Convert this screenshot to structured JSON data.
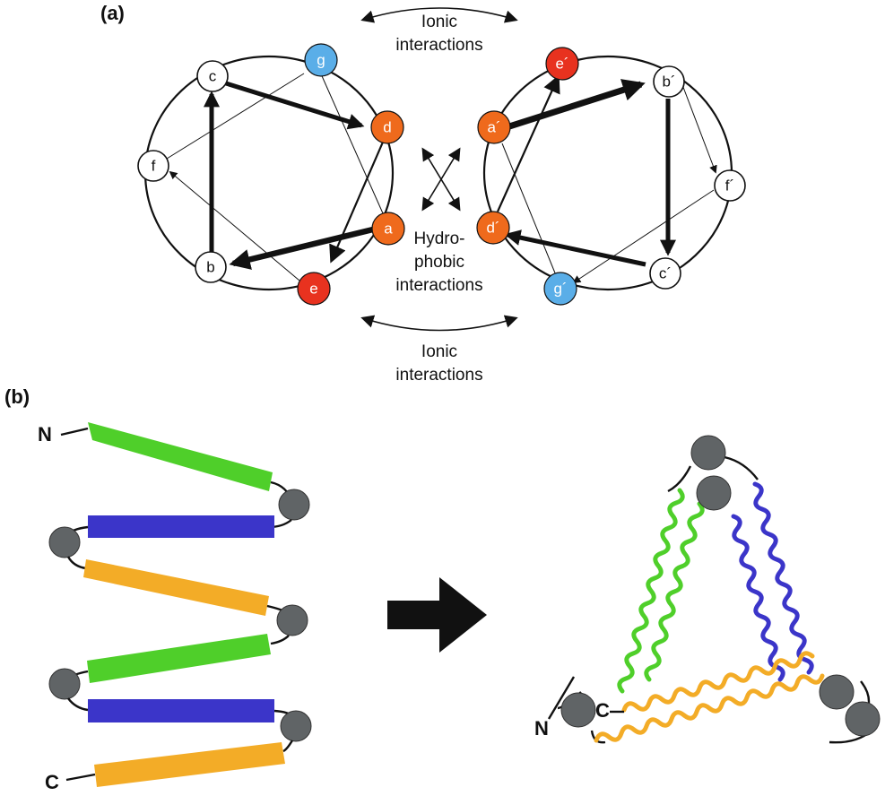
{
  "panels": {
    "a_label": "(a)",
    "b_label": "(b)"
  },
  "annotations": {
    "ionic_top_line1": "Ionic",
    "ionic_top_line2": "interactions",
    "hydro_line1": "Hydro-",
    "hydro_line2": "phobic",
    "hydro_line3": "interactions",
    "ionic_bottom_line1": "Ionic",
    "ionic_bottom_line2": "interactions"
  },
  "colors": {
    "ionic_red": "#e8321f",
    "hydrophobic_orange": "#ef6a1c",
    "blue_g": "#5aaee8",
    "neutral": "#ffffff",
    "helix_green": "#4fcf2a",
    "helix_blue": "#3b35c9",
    "helix_orange": "#f3ac27",
    "linker_gray": "#606466",
    "arrow_black": "#111111"
  },
  "wheels": {
    "left": {
      "residues": [
        {
          "id": "c",
          "label": "c",
          "type": "neutral"
        },
        {
          "id": "g",
          "label": "g",
          "type": "blue_g"
        },
        {
          "id": "d",
          "label": "d",
          "type": "hydrophobic_orange"
        },
        {
          "id": "a",
          "label": "a",
          "type": "hydrophobic_orange"
        },
        {
          "id": "e",
          "label": "e",
          "type": "ionic_red"
        },
        {
          "id": "b",
          "label": "b",
          "type": "neutral"
        },
        {
          "id": "f",
          "label": "f",
          "type": "neutral"
        }
      ]
    },
    "right": {
      "residues": [
        {
          "id": "e_prime",
          "label": "e´",
          "type": "ionic_red"
        },
        {
          "id": "b_prime",
          "label": "b´",
          "type": "neutral"
        },
        {
          "id": "f_prime",
          "label": "f´",
          "type": "neutral"
        },
        {
          "id": "c_prime",
          "label": "c´",
          "type": "neutral"
        },
        {
          "id": "g_prime",
          "label": "g´",
          "type": "blue_g"
        },
        {
          "id": "d_prime",
          "label": "d´",
          "type": "hydrophobic_orange"
        },
        {
          "id": "a_prime",
          "label": "a´",
          "type": "hydrophobic_orange"
        }
      ]
    }
  },
  "termini": {
    "n": "N",
    "c": "C",
    "n3d": "N",
    "c3d": "C"
  },
  "segments_b": {
    "sequence": [
      "helix_green",
      "helix_blue",
      "helix_orange",
      "helix_green",
      "helix_blue",
      "helix_orange"
    ]
  }
}
